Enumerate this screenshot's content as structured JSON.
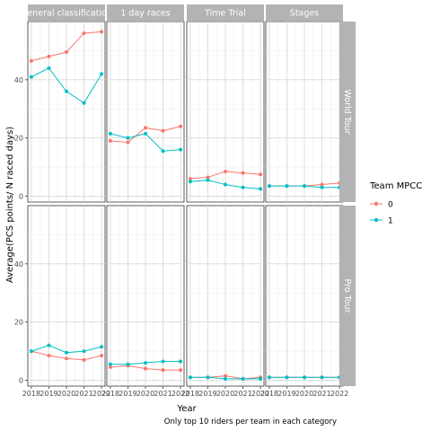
{
  "chart_data": {
    "type": "line",
    "x": [
      2018,
      2019,
      2020,
      2021,
      2022
    ],
    "x_tick_labels": [
      "2018",
      "2019",
      "2020",
      "2021",
      "2022"
    ],
    "ylabel": "Average(PCS points/ N raced days)",
    "xlabel": "Year",
    "caption": "Only top 10 riders per team in each category",
    "ylim": [
      -2,
      60
    ],
    "y_ticks": [
      0,
      20,
      40
    ],
    "grid": true,
    "legend": {
      "title": "Team MPCC",
      "position": "right",
      "entries": [
        {
          "label": "0",
          "color": "#F8766D"
        },
        {
          "label": "1",
          "color": "#00BFC4"
        }
      ]
    },
    "columns": [
      "General classification",
      "1 day races",
      "Time Trial",
      "Stages"
    ],
    "rows": [
      "World Tour",
      "Pro Tour"
    ],
    "panels": [
      {
        "row": "World Tour",
        "column": "General classification",
        "series": [
          {
            "name": "0",
            "values": [
              46.5,
              48,
              49.5,
              56,
              56.5
            ]
          },
          {
            "name": "1",
            "values": [
              41,
              44,
              36,
              32,
              42
            ]
          }
        ]
      },
      {
        "row": "World Tour",
        "column": "1 day races",
        "series": [
          {
            "name": "0",
            "values": [
              19,
              18.5,
              23.5,
              22.5,
              24
            ]
          },
          {
            "name": "1",
            "values": [
              21.5,
              20,
              21.5,
              15.5,
              16
            ]
          }
        ]
      },
      {
        "row": "World Tour",
        "column": "Time Trial",
        "series": [
          {
            "name": "0",
            "values": [
              6,
              6.5,
              8.5,
              8,
              7.5
            ]
          },
          {
            "name": "1",
            "values": [
              5,
              5.5,
              4,
              3,
              2.5
            ]
          }
        ]
      },
      {
        "row": "World Tour",
        "column": "Stages",
        "series": [
          {
            "name": "0",
            "values": [
              3.5,
              3.5,
              3.5,
              4,
              4.5
            ]
          },
          {
            "name": "1",
            "values": [
              3.5,
              3.5,
              3.5,
              3,
              3
            ]
          }
        ]
      },
      {
        "row": "Pro Tour",
        "column": "General classification",
        "series": [
          {
            "name": "0",
            "values": [
              10,
              8.5,
              7.5,
              7,
              8.5
            ]
          },
          {
            "name": "1",
            "values": [
              10,
              12,
              9.5,
              10,
              11.5
            ]
          }
        ]
      },
      {
        "row": "Pro Tour",
        "column": "1 day races",
        "series": [
          {
            "name": "0",
            "values": [
              4.5,
              5,
              4,
              3.5,
              3.5
            ]
          },
          {
            "name": "1",
            "values": [
              5.5,
              5.5,
              6,
              6.5,
              6.5
            ]
          }
        ]
      },
      {
        "row": "Pro Tour",
        "column": "Time Trial",
        "series": [
          {
            "name": "0",
            "values": [
              1,
              1,
              1.5,
              0.5,
              1
            ]
          },
          {
            "name": "1",
            "values": [
              1,
              1,
              0.5,
              0.5,
              0.5
            ]
          }
        ]
      },
      {
        "row": "Pro Tour",
        "column": "Stages",
        "series": [
          {
            "name": "0",
            "values": [
              1,
              1,
              1,
              1,
              1
            ]
          },
          {
            "name": "1",
            "values": [
              1,
              1,
              1,
              1,
              1
            ]
          }
        ]
      }
    ]
  }
}
